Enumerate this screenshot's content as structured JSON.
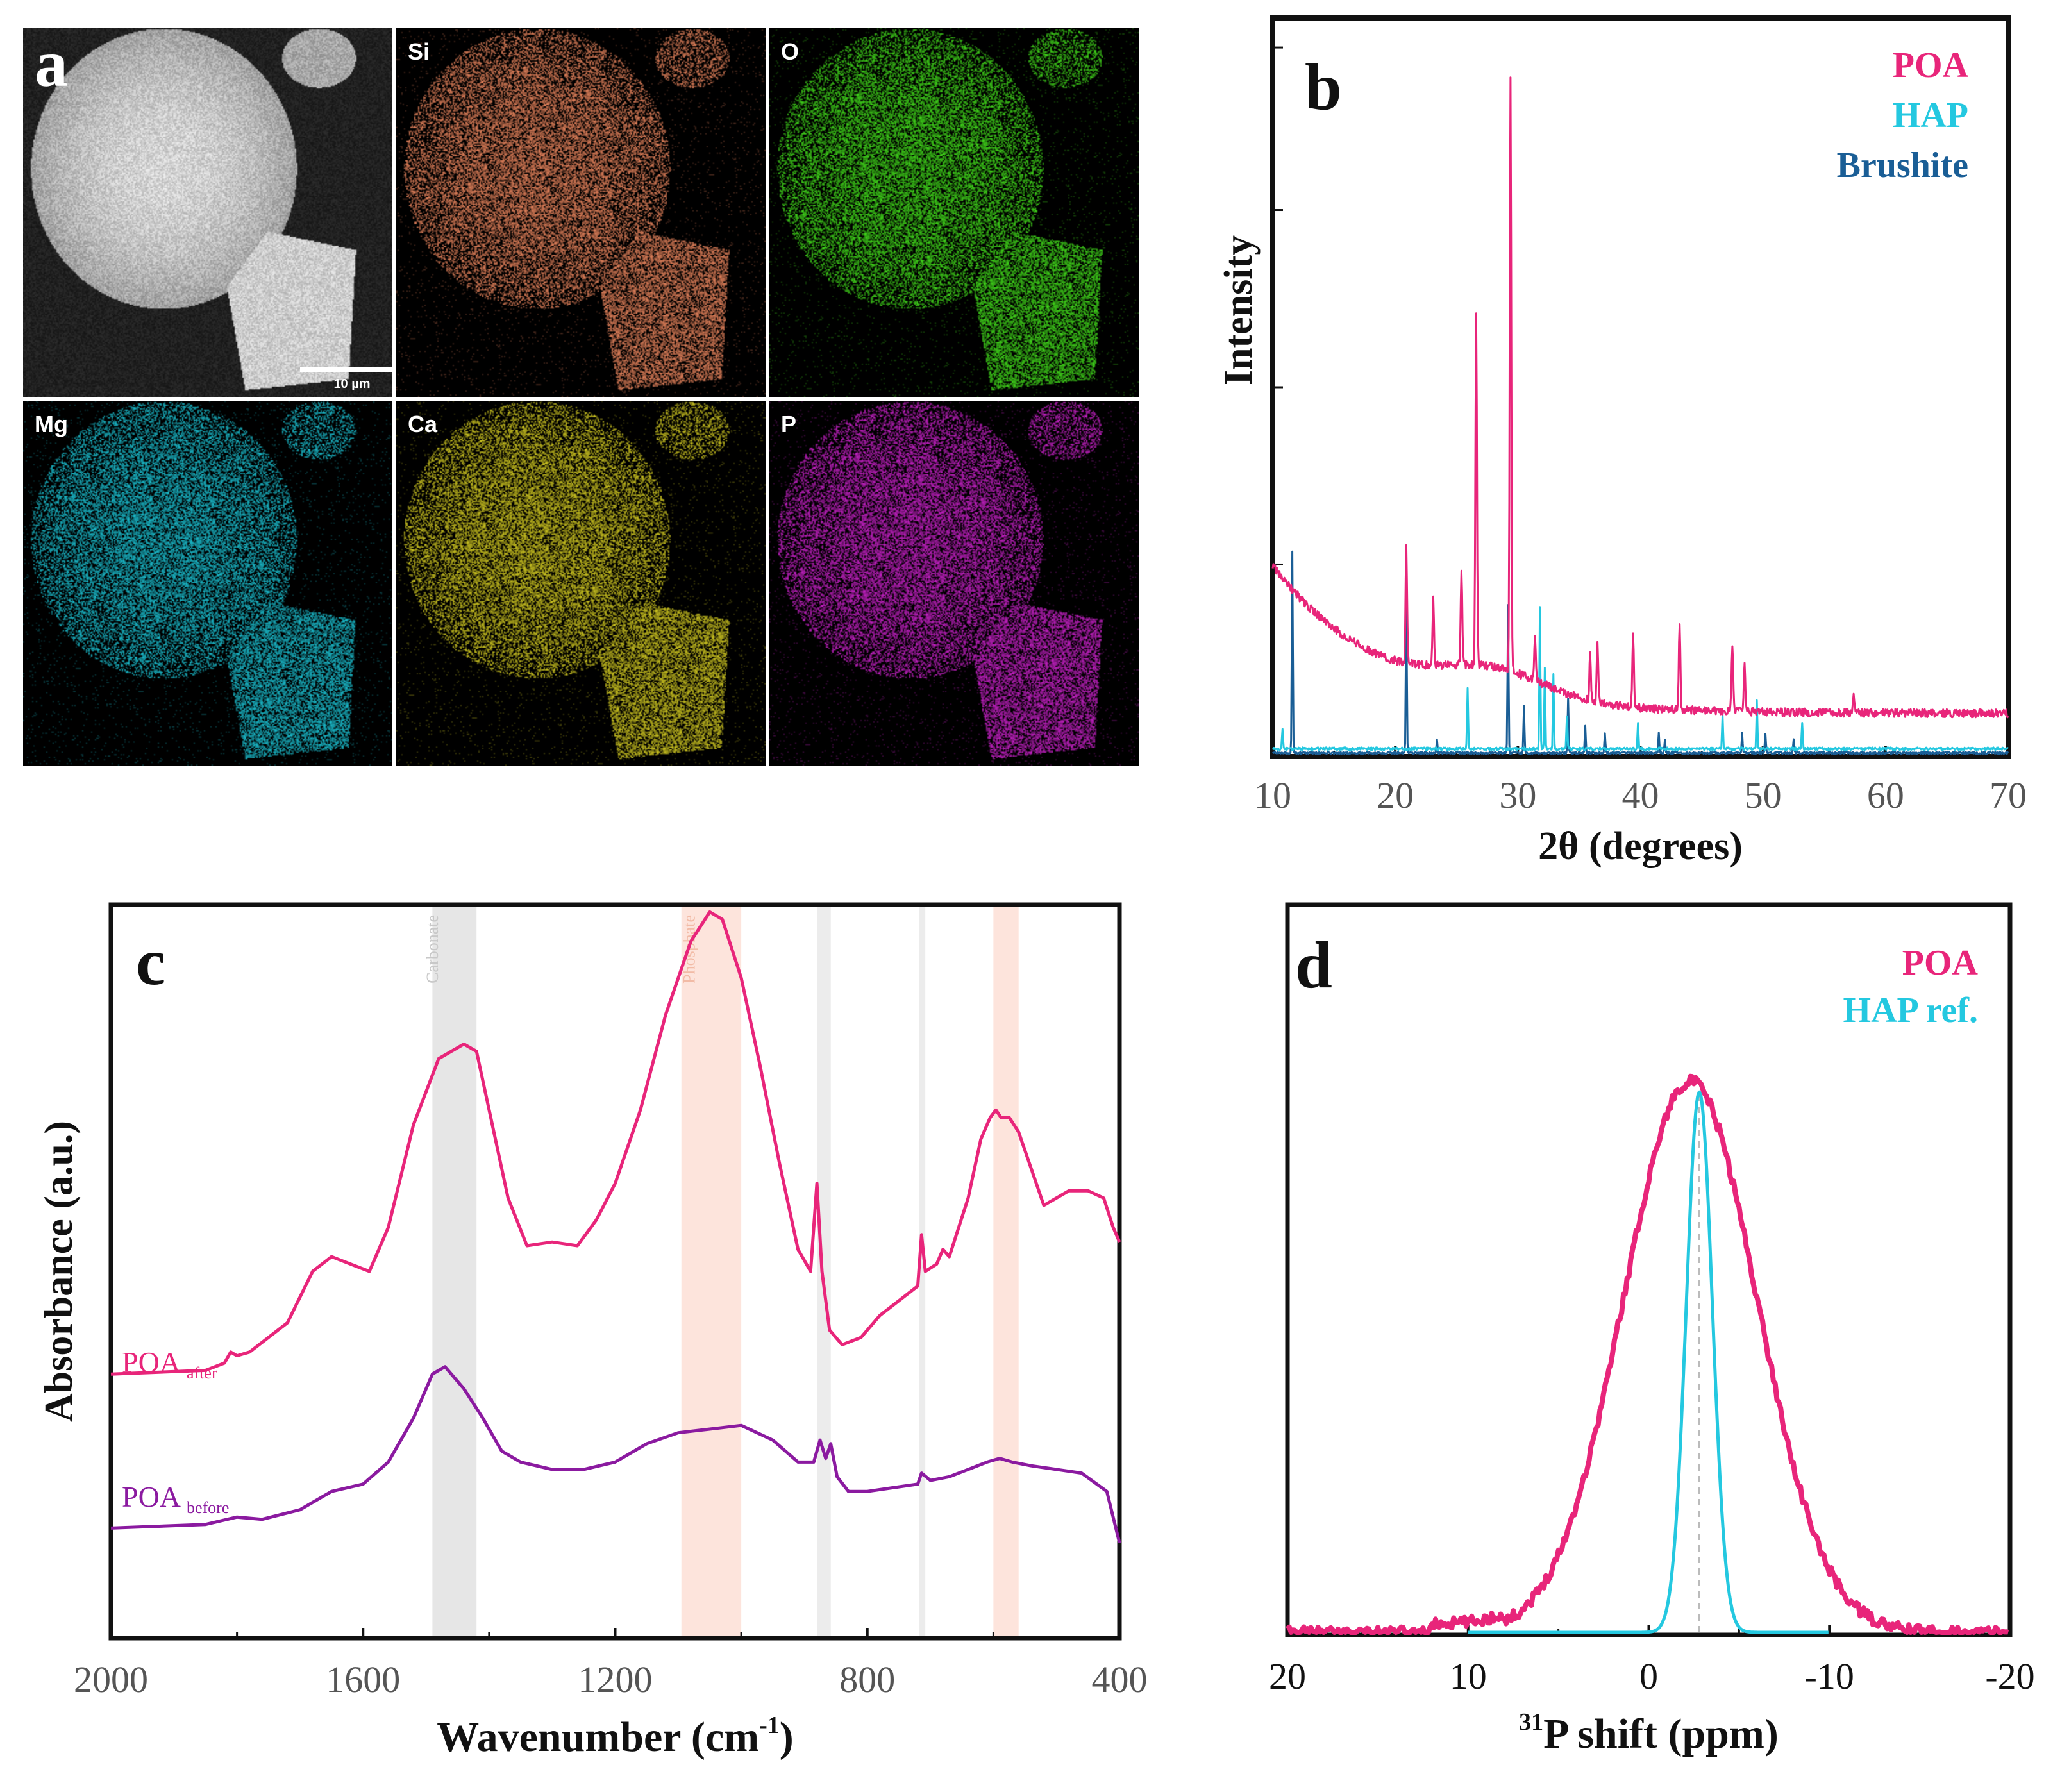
{
  "panel_a": {
    "letter": "a",
    "scale_bar": "10 µm",
    "tiles": [
      {
        "label": "",
        "color": "#d8d8d8",
        "kind": "sem"
      },
      {
        "label": "Si",
        "color": "#e0805a",
        "kind": "map"
      },
      {
        "label": "O",
        "color": "#3fd21a",
        "kind": "map"
      },
      {
        "label": "Mg",
        "color": "#1ab8c8",
        "kind": "map"
      },
      {
        "label": "Ca",
        "color": "#c8c020",
        "kind": "map"
      },
      {
        "label": "P",
        "color": "#c020c0",
        "kind": "map"
      }
    ]
  },
  "chart_data": [
    {
      "panel": "b",
      "type": "line",
      "xlabel": "2θ (degrees)",
      "ylabel": "Intensity",
      "xlim": [
        10,
        70
      ],
      "xticks": [
        10,
        20,
        30,
        40,
        50,
        60,
        70
      ],
      "legend": [
        {
          "name": "POA",
          "color": "#e8257a"
        },
        {
          "name": "HAP",
          "color": "#24c8e0"
        },
        {
          "name": "Brushite",
          "color": "#1a5e96"
        }
      ],
      "series": [
        {
          "name": "POA",
          "color": "#e8257a",
          "peaks": [
            [
              20.9,
              0.17
            ],
            [
              23.1,
              0.1
            ],
            [
              25.4,
              0.14
            ],
            [
              26.6,
              0.52
            ],
            [
              29.4,
              0.88
            ],
            [
              31.4,
              0.06
            ],
            [
              35.9,
              0.07
            ],
            [
              36.5,
              0.09
            ],
            [
              39.4,
              0.11
            ],
            [
              43.2,
              0.13
            ],
            [
              47.5,
              0.1
            ],
            [
              48.5,
              0.07
            ],
            [
              57.4,
              0.03
            ]
          ]
        },
        {
          "name": "HAP",
          "color": "#24c8e0",
          "peaks": [
            [
              10.8,
              0.03
            ],
            [
              25.9,
              0.09
            ],
            [
              31.8,
              0.21
            ],
            [
              32.2,
              0.12
            ],
            [
              32.9,
              0.11
            ],
            [
              34.0,
              0.05
            ],
            [
              39.8,
              0.04
            ],
            [
              46.7,
              0.05
            ],
            [
              49.5,
              0.07
            ],
            [
              53.2,
              0.04
            ]
          ]
        },
        {
          "name": "Brushite",
          "color": "#1a5e96",
          "peaks": [
            [
              11.6,
              0.3
            ],
            [
              20.9,
              0.23
            ],
            [
              23.4,
              0.02
            ],
            [
              29.2,
              0.22
            ],
            [
              30.5,
              0.07
            ],
            [
              34.1,
              0.08
            ],
            [
              35.5,
              0.04
            ],
            [
              37.1,
              0.03
            ],
            [
              41.5,
              0.03
            ],
            [
              42.0,
              0.02
            ],
            [
              48.3,
              0.03
            ],
            [
              50.2,
              0.03
            ],
            [
              52.5,
              0.02
            ]
          ]
        }
      ]
    },
    {
      "panel": "c",
      "type": "line",
      "xlabel_main": "Wavenumber (cm",
      "xlabel_sup": "-1",
      "xlabel_end": ")",
      "ylabel": "Absorbance (a.u.)",
      "xlim": [
        2000,
        400
      ],
      "xticks": [
        2000,
        1600,
        1200,
        800,
        400
      ],
      "bands": [
        {
          "from": 1490,
          "to": 1420,
          "color": "#e6e6e6",
          "label": "Carbonate"
        },
        {
          "from": 1095,
          "to": 1000,
          "color": "#fde4dc",
          "label": "Phosphate"
        },
        {
          "from": 880,
          "to": 858,
          "color": "#ececec",
          "label": ""
        },
        {
          "from": 718,
          "to": 708,
          "color": "#ececec",
          "label": ""
        },
        {
          "from": 600,
          "to": 560,
          "color": "#fde4dc",
          "label": ""
        }
      ],
      "series": [
        {
          "name": "POA",
          "subscript": "after",
          "color": "#e8257a",
          "points": [
            [
              2000,
              0.36
            ],
            [
              1850,
              0.365
            ],
            [
              1820,
              0.375
            ],
            [
              1810,
              0.39
            ],
            [
              1800,
              0.385
            ],
            [
              1780,
              0.39
            ],
            [
              1720,
              0.43
            ],
            [
              1680,
              0.5
            ],
            [
              1650,
              0.52
            ],
            [
              1620,
              0.51
            ],
            [
              1590,
              0.5
            ],
            [
              1560,
              0.56
            ],
            [
              1520,
              0.7
            ],
            [
              1480,
              0.79
            ],
            [
              1440,
              0.81
            ],
            [
              1420,
              0.8
            ],
            [
              1400,
              0.72
            ],
            [
              1370,
              0.6
            ],
            [
              1340,
              0.535
            ],
            [
              1300,
              0.54
            ],
            [
              1260,
              0.535
            ],
            [
              1230,
              0.57
            ],
            [
              1200,
              0.62
            ],
            [
              1160,
              0.72
            ],
            [
              1120,
              0.85
            ],
            [
              1080,
              0.95
            ],
            [
              1050,
              0.99
            ],
            [
              1030,
              0.98
            ],
            [
              1000,
              0.9
            ],
            [
              970,
              0.78
            ],
            [
              940,
              0.65
            ],
            [
              910,
              0.53
            ],
            [
              890,
              0.5
            ],
            [
              880,
              0.62
            ],
            [
              872,
              0.5
            ],
            [
              860,
              0.42
            ],
            [
              840,
              0.4
            ],
            [
              810,
              0.41
            ],
            [
              780,
              0.44
            ],
            [
              750,
              0.46
            ],
            [
              720,
              0.48
            ],
            [
              714,
              0.55
            ],
            [
              708,
              0.5
            ],
            [
              690,
              0.51
            ],
            [
              680,
              0.53
            ],
            [
              670,
              0.52
            ],
            [
              640,
              0.6
            ],
            [
              620,
              0.68
            ],
            [
              605,
              0.71
            ],
            [
              596,
              0.72
            ],
            [
              588,
              0.71
            ],
            [
              575,
              0.71
            ],
            [
              560,
              0.69
            ],
            [
              540,
              0.64
            ],
            [
              520,
              0.59
            ],
            [
              500,
              0.6
            ],
            [
              480,
              0.61
            ],
            [
              450,
              0.61
            ],
            [
              425,
              0.6
            ],
            [
              410,
              0.56
            ],
            [
              400,
              0.54
            ]
          ]
        },
        {
          "name": "POA",
          "subscript": "before",
          "color": "#8b1aa0",
          "points": [
            [
              2000,
              0.15
            ],
            [
              1850,
              0.155
            ],
            [
              1800,
              0.165
            ],
            [
              1760,
              0.162
            ],
            [
              1700,
              0.175
            ],
            [
              1650,
              0.2
            ],
            [
              1600,
              0.21
            ],
            [
              1560,
              0.24
            ],
            [
              1520,
              0.3
            ],
            [
              1490,
              0.36
            ],
            [
              1470,
              0.37
            ],
            [
              1440,
              0.34
            ],
            [
              1410,
              0.3
            ],
            [
              1380,
              0.255
            ],
            [
              1350,
              0.24
            ],
            [
              1300,
              0.23
            ],
            [
              1250,
              0.23
            ],
            [
              1200,
              0.24
            ],
            [
              1150,
              0.265
            ],
            [
              1100,
              0.28
            ],
            [
              1050,
              0.285
            ],
            [
              1000,
              0.29
            ],
            [
              950,
              0.27
            ],
            [
              910,
              0.24
            ],
            [
              885,
              0.24
            ],
            [
              875,
              0.27
            ],
            [
              866,
              0.245
            ],
            [
              858,
              0.265
            ],
            [
              848,
              0.22
            ],
            [
              830,
              0.2
            ],
            [
              800,
              0.2
            ],
            [
              760,
              0.205
            ],
            [
              720,
              0.21
            ],
            [
              714,
              0.225
            ],
            [
              700,
              0.215
            ],
            [
              670,
              0.22
            ],
            [
              640,
              0.23
            ],
            [
              610,
              0.24
            ],
            [
              590,
              0.245
            ],
            [
              570,
              0.24
            ],
            [
              540,
              0.235
            ],
            [
              500,
              0.23
            ],
            [
              460,
              0.225
            ],
            [
              420,
              0.2
            ],
            [
              400,
              0.13
            ]
          ]
        }
      ]
    },
    {
      "panel": "d",
      "type": "line",
      "xlabel_sup": "31",
      "xlabel_main": "P shift (ppm)",
      "xlim": [
        20,
        -20
      ],
      "xticks": [
        20,
        10,
        0,
        -10,
        -20
      ],
      "xtick_labels": [
        "20",
        "10",
        "0",
        "-10",
        "-20"
      ],
      "legend": [
        {
          "name": "POA",
          "color": "#e8257a"
        },
        {
          "name": "HAP ref.",
          "color": "#24c8e0"
        }
      ],
      "reference_line": -2.8,
      "series": [
        {
          "name": "POA",
          "color": "#e8257a",
          "center": -2.3,
          "fwhm": 8.7,
          "height": 1.0
        },
        {
          "name": "HAP ref.",
          "color": "#24c8e0",
          "center": -2.8,
          "fwhm": 1.7,
          "height": 0.98
        }
      ]
    }
  ],
  "labels": {
    "b_letter": "b",
    "c_letter": "c",
    "d_letter": "d"
  }
}
